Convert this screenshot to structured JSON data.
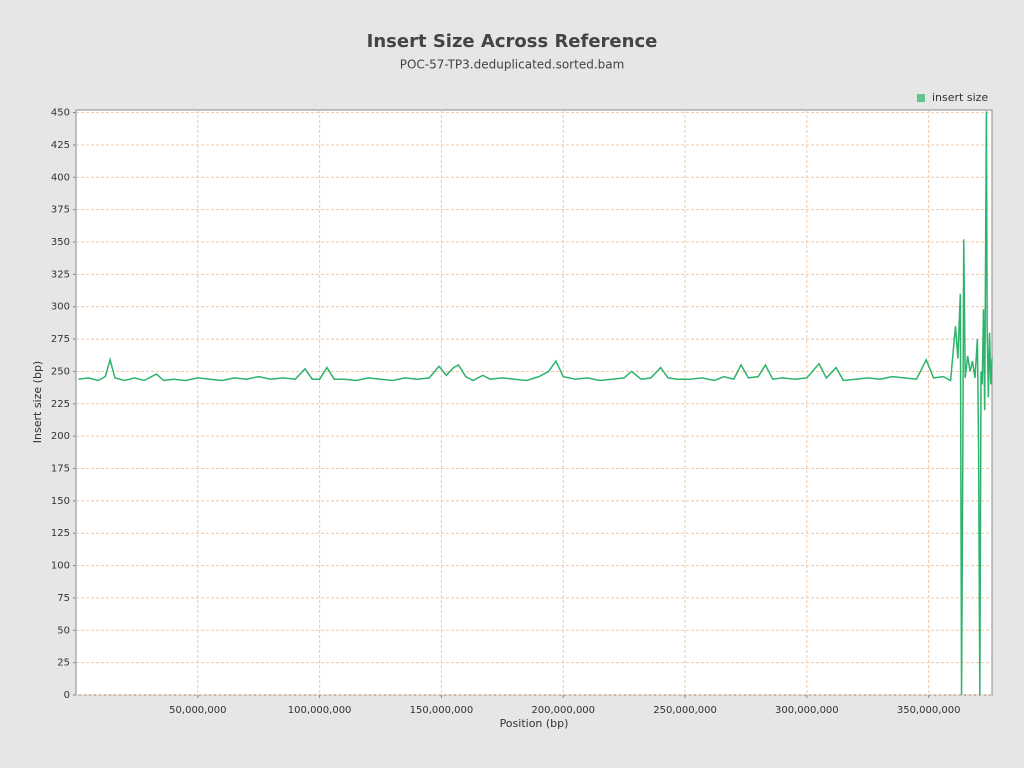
{
  "chart_data": {
    "type": "line",
    "title": "Insert Size Across Reference",
    "subtitle": "POC-57-TP3.deduplicated.sorted.bam",
    "x_label": "Position (bp)",
    "y_label": "Insert size (bp)",
    "legend_position": "top-right",
    "grid": true,
    "xlim": [
      0,
      376000000
    ],
    "ylim": [
      0,
      452
    ],
    "xticks": [
      {
        "value": 50000000,
        "label": "50,000,000"
      },
      {
        "value": 100000000,
        "label": "100,000,000"
      },
      {
        "value": 150000000,
        "label": "150,000,000"
      },
      {
        "value": 200000000,
        "label": "200,000,000"
      },
      {
        "value": 250000000,
        "label": "250,000,000"
      },
      {
        "value": 300000000,
        "label": "300,000,000"
      },
      {
        "value": 350000000,
        "label": "350,000,000"
      }
    ],
    "yticks": [
      0,
      25,
      50,
      75,
      100,
      125,
      150,
      175,
      200,
      225,
      250,
      275,
      300,
      325,
      350,
      375,
      400,
      425,
      450
    ],
    "x": [
      1000000,
      5000000,
      9000000,
      12000000,
      14000000,
      16000000,
      20000000,
      24000000,
      28000000,
      33000000,
      36000000,
      40000000,
      45000000,
      50000000,
      55000000,
      60000000,
      65000000,
      70000000,
      75000000,
      80000000,
      85000000,
      90000000,
      94000000,
      97000000,
      100000000,
      103000000,
      106000000,
      110000000,
      115000000,
      120000000,
      125000000,
      130000000,
      135000000,
      140000000,
      145000000,
      149000000,
      152000000,
      155000000,
      157000000,
      160000000,
      163000000,
      167000000,
      170000000,
      175000000,
      180000000,
      185000000,
      190000000,
      194000000,
      197000000,
      200000000,
      205000000,
      210000000,
      215000000,
      220000000,
      225000000,
      228000000,
      232000000,
      236000000,
      240000000,
      243000000,
      247000000,
      252000000,
      257000000,
      262000000,
      266000000,
      270000000,
      273000000,
      276000000,
      280000000,
      283000000,
      286000000,
      290000000,
      295000000,
      300000000,
      305000000,
      308000000,
      312000000,
      315000000,
      320000000,
      325000000,
      330000000,
      335000000,
      340000000,
      345000000,
      349000000,
      352000000,
      356000000,
      359000000,
      361000000,
      362000000,
      363000000,
      363500000,
      364000000,
      364400000,
      365000000,
      366000000,
      367000000,
      368000000,
      369000000,
      370000000,
      370500000,
      371000000,
      371500000,
      372000000,
      372500000,
      373000000,
      373700000,
      374000000,
      374500000,
      375000000,
      375500000,
      376000000
    ],
    "series": [
      {
        "name": "insert size",
        "color": "#2db36b",
        "values": [
          244,
          245,
          243,
          246,
          259,
          245,
          243,
          245,
          243,
          248,
          243,
          244,
          243,
          245,
          244,
          243,
          245,
          244,
          246,
          244,
          245,
          244,
          252,
          244,
          244,
          253,
          244,
          244,
          243,
          245,
          244,
          243,
          245,
          244,
          245,
          254,
          247,
          253,
          255,
          246,
          243,
          247,
          244,
          245,
          244,
          243,
          246,
          250,
          258,
          246,
          244,
          245,
          243,
          244,
          245,
          250,
          244,
          245,
          253,
          245,
          244,
          244,
          245,
          243,
          246,
          244,
          255,
          245,
          246,
          255,
          244,
          245,
          244,
          245,
          256,
          245,
          253,
          243,
          244,
          245,
          244,
          246,
          245,
          244,
          259,
          245,
          246,
          243,
          285,
          260,
          310,
          0,
          180,
          352,
          245,
          262,
          250,
          258,
          245,
          275,
          190,
          0,
          250,
          240,
          298,
          220,
          451,
          285,
          230,
          280,
          240,
          260
        ]
      }
    ]
  }
}
